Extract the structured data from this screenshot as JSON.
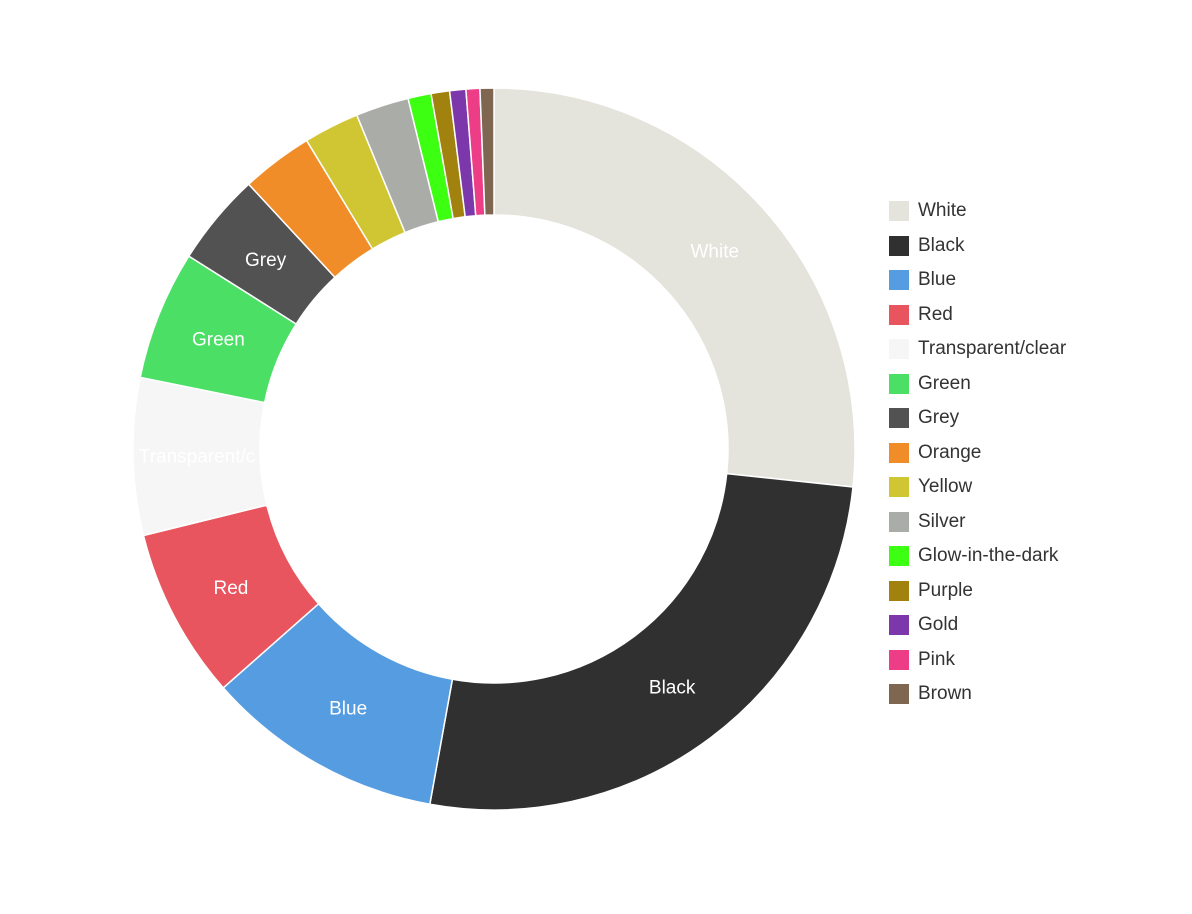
{
  "chart_data": {
    "type": "pie",
    "variant": "donut",
    "legend_position": "right",
    "series": [
      {
        "name": "White",
        "value": 25.8,
        "color": "#e4e4dc",
        "label": "White"
      },
      {
        "name": "Black",
        "value": 25.3,
        "color": "#303030",
        "label": "Black"
      },
      {
        "name": "Blue",
        "value": 10.3,
        "color": "#559ce0",
        "label": "Blue"
      },
      {
        "name": "Red",
        "value": 7.4,
        "color": "#e9555e",
        "label": "Red"
      },
      {
        "name": "Transparent/clear",
        "value": 6.8,
        "color": "#f6f6f6",
        "label": "Transparent/c"
      },
      {
        "name": "Green",
        "value": 5.6,
        "color": "#4cdf66",
        "label": "Green"
      },
      {
        "name": "Grey",
        "value": 4.0,
        "color": "#525252",
        "label": "Grey"
      },
      {
        "name": "Orange",
        "value": 3.1,
        "color": "#f18d28",
        "label": ""
      },
      {
        "name": "Yellow",
        "value": 2.4,
        "color": "#d0c633",
        "label": ""
      },
      {
        "name": "Silver",
        "value": 2.3,
        "color": "#aaaca8",
        "label": ""
      },
      {
        "name": "Glow-in-the-dark",
        "value": 1.0,
        "color": "#3dff12",
        "label": ""
      },
      {
        "name": "Purple",
        "value": 0.8,
        "color": "#a1820f",
        "label": ""
      },
      {
        "name": "Gold",
        "value": 0.7,
        "color": "#7c38aa",
        "label": ""
      },
      {
        "name": "Pink",
        "value": 0.6,
        "color": "#ec3d86",
        "label": ""
      },
      {
        "name": "Brown",
        "value": 0.6,
        "color": "#7e6651",
        "label": ""
      }
    ]
  }
}
